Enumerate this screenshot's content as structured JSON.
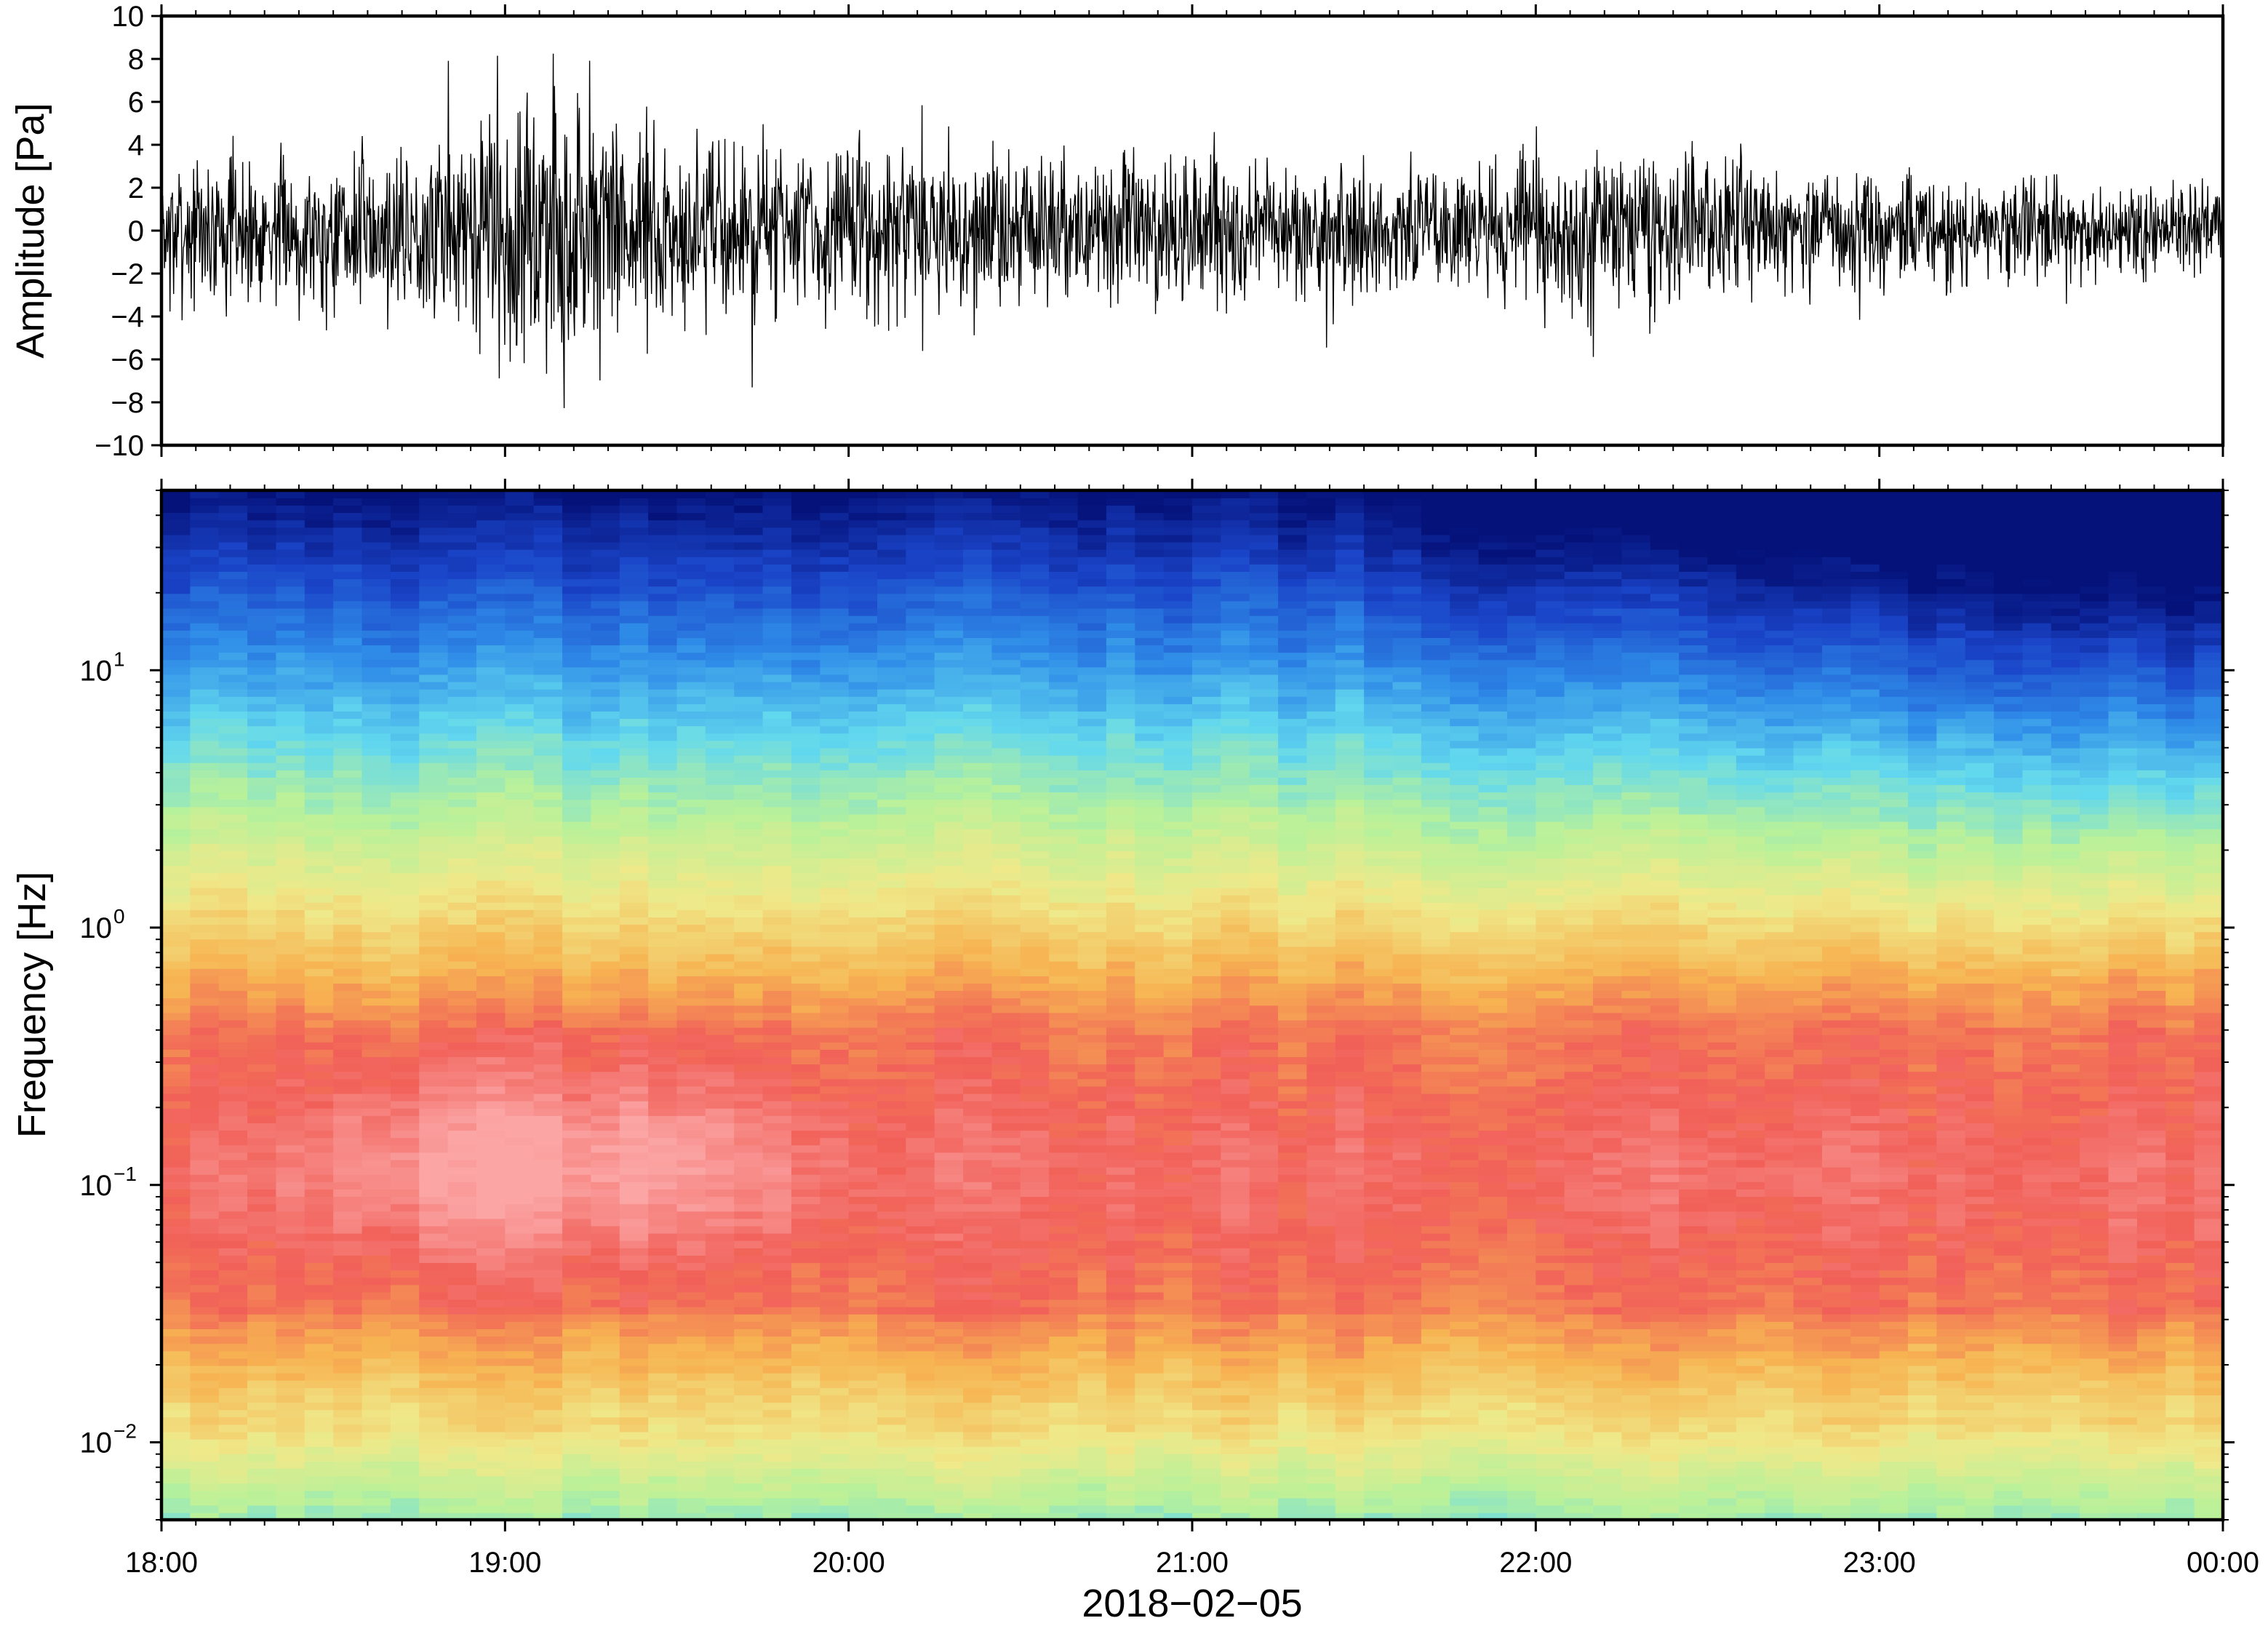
{
  "chart_data": [
    {
      "type": "line",
      "panel": "waveform",
      "ylabel": "Amplitude [Pa]",
      "ylim": [
        -10,
        10
      ],
      "yticks": [
        "10",
        "8",
        "6",
        "4",
        "2",
        "0",
        "−2",
        "−4",
        "−6",
        "−8",
        "−10"
      ],
      "xlim": [
        "2018-02-05T18:00",
        "2018-02-06T00:00"
      ],
      "series": [
        {
          "envelope_hours": [
            18.0,
            18.25,
            18.5,
            18.75,
            18.9,
            19.0,
            19.1,
            19.2,
            19.3,
            19.4,
            19.5,
            19.75,
            20.0,
            20.25,
            20.5,
            20.75,
            21.0,
            21.25,
            21.5,
            21.75,
            22.0,
            22.25,
            22.5,
            22.75,
            23.0,
            23.25,
            23.5,
            23.75,
            24.0
          ],
          "envelope_pa": [
            2.8,
            3.0,
            3.0,
            3.4,
            4.5,
            5.5,
            6.5,
            6.0,
            5.5,
            4.8,
            4.0,
            3.6,
            3.4,
            3.2,
            3.2,
            3.0,
            3.0,
            2.8,
            2.6,
            2.5,
            3.2,
            3.4,
            3.0,
            2.6,
            2.4,
            2.2,
            2.0,
            1.8,
            1.6
          ]
        }
      ],
      "grid": false
    },
    {
      "type": "heatmap",
      "panel": "spectrogram",
      "ylabel": "Frequency [Hz]",
      "yscale": "log",
      "ylim": [
        0.005,
        50
      ],
      "yticks": [
        {
          "base": "10",
          "exp": "1",
          "value": 10
        },
        {
          "base": "10",
          "exp": "0",
          "value": 1
        },
        {
          "base": "10",
          "exp": "−1",
          "value": 0.1
        },
        {
          "base": "10",
          "exp": "−2",
          "value": 0.01
        }
      ],
      "xlabel": "2018−02−05",
      "xticks": [
        "18:00",
        "19:00",
        "20:00",
        "21:00",
        "22:00",
        "23:00",
        "00:00"
      ],
      "xlim": [
        "2018-02-05T18:00",
        "2018-02-06T00:00"
      ],
      "colormap": [
        "#05127a",
        "#1a44c8",
        "#2f8ce8",
        "#62d8ee",
        "#b8f19a",
        "#efe98a",
        "#f7b452",
        "#f16058",
        "#fba5a5"
      ],
      "hot_zone_hours": [
        18.8,
        19.5
      ],
      "grid": false
    }
  ]
}
